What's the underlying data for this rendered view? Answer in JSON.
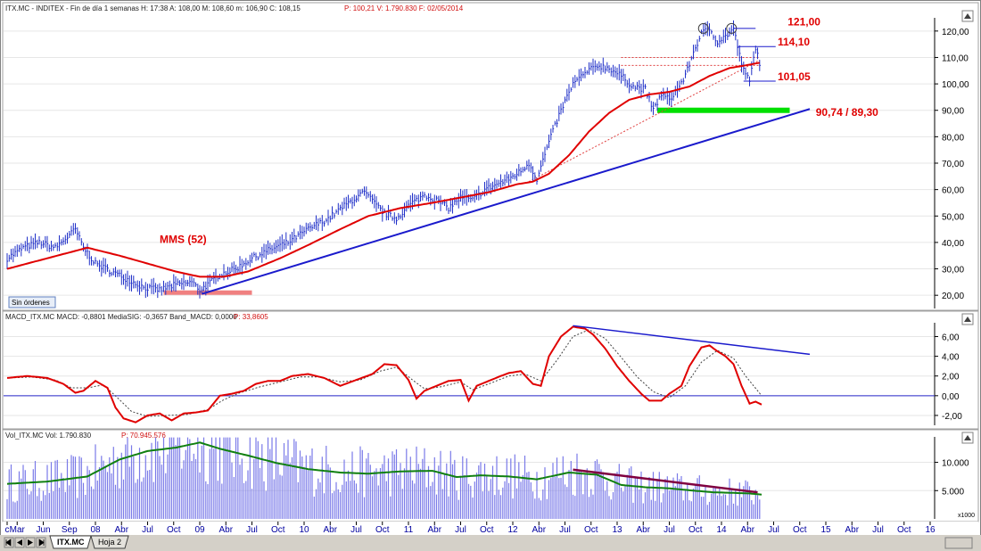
{
  "panels": {
    "price": {
      "header": "ITX.MC - INDITEX - Fin de día 1 semanas  H: 17:38  A: 108,00  M: 108,60  m: 106,90  C: 108,15",
      "header_extra": "P: 100,21  V: 1.790.830  F: 02/05/2014",
      "button_label": "Sin órdenes"
    },
    "macd": {
      "header": "MACD_ITX.MC  MACD: -0,8801  MediaSIG: -0,3657  Band_MACD: 0,0000",
      "header_extra": "P: 33,8605"
    },
    "volume": {
      "header": "Vol_ITX.MC  Vol: 1.790.830",
      "header_extra": "P: 70.945.576",
      "scale_label": "x1000"
    }
  },
  "tabs": [
    {
      "label": "ITX.MC"
    },
    {
      "label": "Hoja 2"
    }
  ],
  "chart_data": [
    {
      "type": "line",
      "name": "price",
      "ylim": [
        15,
        125
      ],
      "yticks": [
        "120,00",
        "110,00",
        "100,00",
        "90,00",
        "80,00",
        "70,00",
        "60,00",
        "50,00",
        "40,00",
        "30,00",
        "20,00"
      ],
      "ytick_values": [
        120,
        110,
        100,
        90,
        80,
        70,
        60,
        50,
        40,
        30,
        20
      ],
      "x_labels": [
        {
          "t": 0,
          "label": "c"
        },
        {
          "t": 5,
          "label": "Mar"
        },
        {
          "t": 18,
          "label": "Jun"
        },
        {
          "t": 31,
          "label": "Sep"
        },
        {
          "t": 44,
          "label": "08"
        },
        {
          "t": 57,
          "label": "Abr"
        },
        {
          "t": 70,
          "label": "Jul"
        },
        {
          "t": 83,
          "label": "Oct"
        },
        {
          "t": 96,
          "label": "09"
        },
        {
          "t": 109,
          "label": "Abr"
        },
        {
          "t": 122,
          "label": "Jul"
        },
        {
          "t": 135,
          "label": "Oct"
        },
        {
          "t": 148,
          "label": "10"
        },
        {
          "t": 161,
          "label": "Abr"
        },
        {
          "t": 174,
          "label": "Jul"
        },
        {
          "t": 187,
          "label": "Oct"
        },
        {
          "t": 200,
          "label": "11"
        },
        {
          "t": 213,
          "label": "Abr"
        },
        {
          "t": 226,
          "label": "Jul"
        },
        {
          "t": 239,
          "label": "Oct"
        },
        {
          "t": 252,
          "label": "12"
        },
        {
          "t": 265,
          "label": "Abr"
        },
        {
          "t": 278,
          "label": "Jul"
        },
        {
          "t": 291,
          "label": "Oct"
        },
        {
          "t": 304,
          "label": "13"
        },
        {
          "t": 317,
          "label": "Abr"
        },
        {
          "t": 330,
          "label": "Jul"
        },
        {
          "t": 343,
          "label": "Oct"
        },
        {
          "t": 356,
          "label": "14"
        },
        {
          "t": 369,
          "label": "Abr"
        },
        {
          "t": 382,
          "label": "Jul"
        },
        {
          "t": 395,
          "label": "Oct"
        },
        {
          "t": 408,
          "label": "15"
        },
        {
          "t": 421,
          "label": "Abr"
        },
        {
          "t": 434,
          "label": "Jul"
        },
        {
          "t": 447,
          "label": "Oct"
        },
        {
          "t": 460,
          "label": "16"
        }
      ],
      "price_anchors": [
        [
          0,
          34
        ],
        [
          8,
          38
        ],
        [
          16,
          40
        ],
        [
          24,
          38
        ],
        [
          30,
          42
        ],
        [
          34,
          45
        ],
        [
          38,
          38
        ],
        [
          44,
          32
        ],
        [
          52,
          29
        ],
        [
          60,
          26
        ],
        [
          68,
          23
        ],
        [
          76,
          22
        ],
        [
          84,
          24
        ],
        [
          92,
          25
        ],
        [
          96,
          22
        ],
        [
          100,
          24
        ],
        [
          106,
          28
        ],
        [
          114,
          30
        ],
        [
          122,
          34
        ],
        [
          130,
          37
        ],
        [
          140,
          40
        ],
        [
          150,
          45
        ],
        [
          160,
          49
        ],
        [
          170,
          55
        ],
        [
          178,
          59
        ],
        [
          184,
          54
        ],
        [
          188,
          51
        ],
        [
          194,
          49
        ],
        [
          200,
          54
        ],
        [
          208,
          58
        ],
        [
          214,
          56
        ],
        [
          220,
          53
        ],
        [
          226,
          57
        ],
        [
          232,
          56
        ],
        [
          238,
          60
        ],
        [
          244,
          62
        ],
        [
          250,
          64
        ],
        [
          256,
          67
        ],
        [
          260,
          70
        ],
        [
          264,
          64
        ],
        [
          270,
          78
        ],
        [
          276,
          90
        ],
        [
          282,
          100
        ],
        [
          288,
          104
        ],
        [
          294,
          107
        ],
        [
          300,
          106
        ],
        [
          306,
          103
        ],
        [
          312,
          99
        ],
        [
          318,
          98
        ],
        [
          322,
          90
        ],
        [
          326,
          96
        ],
        [
          330,
          94
        ],
        [
          334,
          98
        ],
        [
          338,
          103
        ],
        [
          342,
          112
        ],
        [
          346,
          119
        ],
        [
          350,
          121
        ],
        [
          354,
          116
        ],
        [
          358,
          118
        ],
        [
          362,
          121
        ],
        [
          364,
          114
        ],
        [
          367,
          105
        ],
        [
          370,
          101
        ],
        [
          373,
          114
        ],
        [
          375,
          108
        ]
      ],
      "ma_anchors": [
        [
          0,
          30
        ],
        [
          20,
          34
        ],
        [
          40,
          38
        ],
        [
          56,
          35
        ],
        [
          70,
          32
        ],
        [
          84,
          29
        ],
        [
          96,
          27
        ],
        [
          108,
          27
        ],
        [
          120,
          29
        ],
        [
          136,
          34
        ],
        [
          150,
          39
        ],
        [
          166,
          45
        ],
        [
          180,
          50
        ],
        [
          196,
          53
        ],
        [
          212,
          55
        ],
        [
          226,
          57
        ],
        [
          240,
          59
        ],
        [
          254,
          62
        ],
        [
          262,
          63
        ],
        [
          270,
          66
        ],
        [
          280,
          73
        ],
        [
          290,
          82
        ],
        [
          300,
          89
        ],
        [
          310,
          94
        ],
        [
          320,
          96
        ],
        [
          330,
          97
        ],
        [
          340,
          99
        ],
        [
          350,
          103
        ],
        [
          360,
          106
        ],
        [
          368,
          107
        ],
        [
          375,
          108
        ]
      ],
      "annotations": [
        {
          "label": "121,00",
          "value": 121.0
        },
        {
          "label": "114,10",
          "value": 114.1
        },
        {
          "label": "101,05",
          "value": 101.05
        },
        {
          "label": "90,74 / 89,30",
          "value": 90.0
        },
        {
          "label": "MMS (52)"
        }
      ],
      "trendline": [
        [
          97,
          20.5
        ],
        [
          400,
          90.5
        ]
      ],
      "support_zone": {
        "x_start": 78,
        "x_end": 122,
        "value": 21
      },
      "green_zone": {
        "x_start": 324,
        "x_end": 390,
        "value": 90
      },
      "red_dotted": [
        {
          "x_start": 306,
          "x_end": 375,
          "value": 110
        },
        {
          "x_start": 306,
          "x_end": 375,
          "value": 107
        }
      ],
      "red_trend": [
        [
          260,
          63
        ],
        [
          375,
          109
        ]
      ],
      "circles": [
        {
          "t": 347,
          "value": 121
        },
        {
          "t": 361,
          "value": 121
        }
      ]
    },
    {
      "type": "line",
      "name": "macd",
      "ylim": [
        -3,
        7.4
      ],
      "yticks": [
        "6,00",
        "4,00",
        "2,00",
        "0,00",
        "-2,00"
      ],
      "ytick_values": [
        6,
        4,
        2,
        0,
        -2
      ],
      "zero_value": 0,
      "macd_anchors": [
        [
          0,
          1.8
        ],
        [
          10,
          2.0
        ],
        [
          20,
          1.8
        ],
        [
          28,
          1.2
        ],
        [
          34,
          0.3
        ],
        [
          38,
          0.5
        ],
        [
          44,
          1.5
        ],
        [
          50,
          0.8
        ],
        [
          54,
          -1.2
        ],
        [
          58,
          -2.3
        ],
        [
          64,
          -2.7
        ],
        [
          70,
          -2.0
        ],
        [
          76,
          -1.8
        ],
        [
          82,
          -2.5
        ],
        [
          88,
          -1.8
        ],
        [
          94,
          -1.7
        ],
        [
          100,
          -1.5
        ],
        [
          106,
          0.0
        ],
        [
          112,
          0.2
        ],
        [
          118,
          0.5
        ],
        [
          124,
          1.2
        ],
        [
          130,
          1.5
        ],
        [
          136,
          1.5
        ],
        [
          142,
          2.0
        ],
        [
          150,
          2.2
        ],
        [
          158,
          1.8
        ],
        [
          166,
          1.0
        ],
        [
          174,
          1.6
        ],
        [
          182,
          2.2
        ],
        [
          188,
          3.2
        ],
        [
          194,
          3.1
        ],
        [
          200,
          1.6
        ],
        [
          204,
          -0.3
        ],
        [
          208,
          0.5
        ],
        [
          214,
          1.0
        ],
        [
          220,
          1.5
        ],
        [
          226,
          1.6
        ],
        [
          230,
          -0.5
        ],
        [
          234,
          1.0
        ],
        [
          240,
          1.5
        ],
        [
          246,
          2.0
        ],
        [
          250,
          2.3
        ],
        [
          256,
          2.5
        ],
        [
          262,
          1.2
        ],
        [
          266,
          1.0
        ],
        [
          270,
          4.0
        ],
        [
          276,
          6.0
        ],
        [
          282,
          7.0
        ],
        [
          288,
          6.8
        ],
        [
          292,
          6.2
        ],
        [
          298,
          4.8
        ],
        [
          304,
          3.0
        ],
        [
          310,
          1.5
        ],
        [
          316,
          0.2
        ],
        [
          320,
          -0.5
        ],
        [
          326,
          -0.5
        ],
        [
          330,
          0.2
        ],
        [
          336,
          1.0
        ],
        [
          340,
          3.0
        ],
        [
          346,
          4.9
        ],
        [
          350,
          5.1
        ],
        [
          354,
          4.5
        ],
        [
          358,
          4.0
        ],
        [
          362,
          3.2
        ],
        [
          366,
          1.0
        ],
        [
          370,
          -0.8
        ],
        [
          373,
          -0.6
        ],
        [
          376,
          -0.9
        ]
      ],
      "signal_anchors": [
        [
          0,
          1.8
        ],
        [
          12,
          1.9
        ],
        [
          24,
          1.6
        ],
        [
          32,
          0.8
        ],
        [
          40,
          0.8
        ],
        [
          48,
          1.1
        ],
        [
          56,
          -0.4
        ],
        [
          62,
          -1.6
        ],
        [
          70,
          -2.1
        ],
        [
          80,
          -2.0
        ],
        [
          90,
          -1.9
        ],
        [
          100,
          -1.4
        ],
        [
          108,
          -0.4
        ],
        [
          116,
          0.3
        ],
        [
          126,
          0.9
        ],
        [
          136,
          1.4
        ],
        [
          146,
          1.9
        ],
        [
          156,
          1.9
        ],
        [
          166,
          1.4
        ],
        [
          176,
          1.6
        ],
        [
          186,
          2.5
        ],
        [
          194,
          2.9
        ],
        [
          202,
          1.6
        ],
        [
          208,
          0.7
        ],
        [
          216,
          0.9
        ],
        [
          226,
          1.4
        ],
        [
          232,
          0.6
        ],
        [
          240,
          1.2
        ],
        [
          250,
          2.0
        ],
        [
          258,
          2.2
        ],
        [
          266,
          1.5
        ],
        [
          274,
          3.6
        ],
        [
          282,
          6.0
        ],
        [
          290,
          6.7
        ],
        [
          298,
          5.8
        ],
        [
          306,
          3.9
        ],
        [
          314,
          1.9
        ],
        [
          322,
          0.4
        ],
        [
          330,
          -0.2
        ],
        [
          338,
          1.0
        ],
        [
          346,
          3.4
        ],
        [
          354,
          4.6
        ],
        [
          362,
          3.8
        ],
        [
          368,
          2.0
        ],
        [
          376,
          0.0
        ]
      ],
      "trendline": [
        [
          282,
          7.1
        ],
        [
          400,
          4.2
        ]
      ]
    },
    {
      "type": "bar",
      "name": "volume",
      "ylim": [
        0,
        14500
      ],
      "yticks": [
        "10.000",
        "5.000"
      ],
      "ytick_values": [
        10000,
        5000
      ],
      "ma_anchors": [
        [
          0,
          6200
        ],
        [
          20,
          6600
        ],
        [
          40,
          7500
        ],
        [
          56,
          10500
        ],
        [
          70,
          12000
        ],
        [
          84,
          12600
        ],
        [
          96,
          13500
        ],
        [
          106,
          12400
        ],
        [
          120,
          11200
        ],
        [
          134,
          9900
        ],
        [
          150,
          8800
        ],
        [
          166,
          8200
        ],
        [
          180,
          8000
        ],
        [
          196,
          8400
        ],
        [
          212,
          8500
        ],
        [
          224,
          7400
        ],
        [
          236,
          7700
        ],
        [
          250,
          7500
        ],
        [
          264,
          7000
        ],
        [
          280,
          8200
        ],
        [
          294,
          7800
        ],
        [
          306,
          6000
        ],
        [
          318,
          5600
        ],
        [
          330,
          5400
        ],
        [
          342,
          5000
        ],
        [
          352,
          4700
        ],
        [
          362,
          4600
        ],
        [
          370,
          4500
        ],
        [
          376,
          4300
        ]
      ],
      "trendline": [
        [
          282,
          8700
        ],
        [
          374,
          4700
        ]
      ]
    }
  ]
}
